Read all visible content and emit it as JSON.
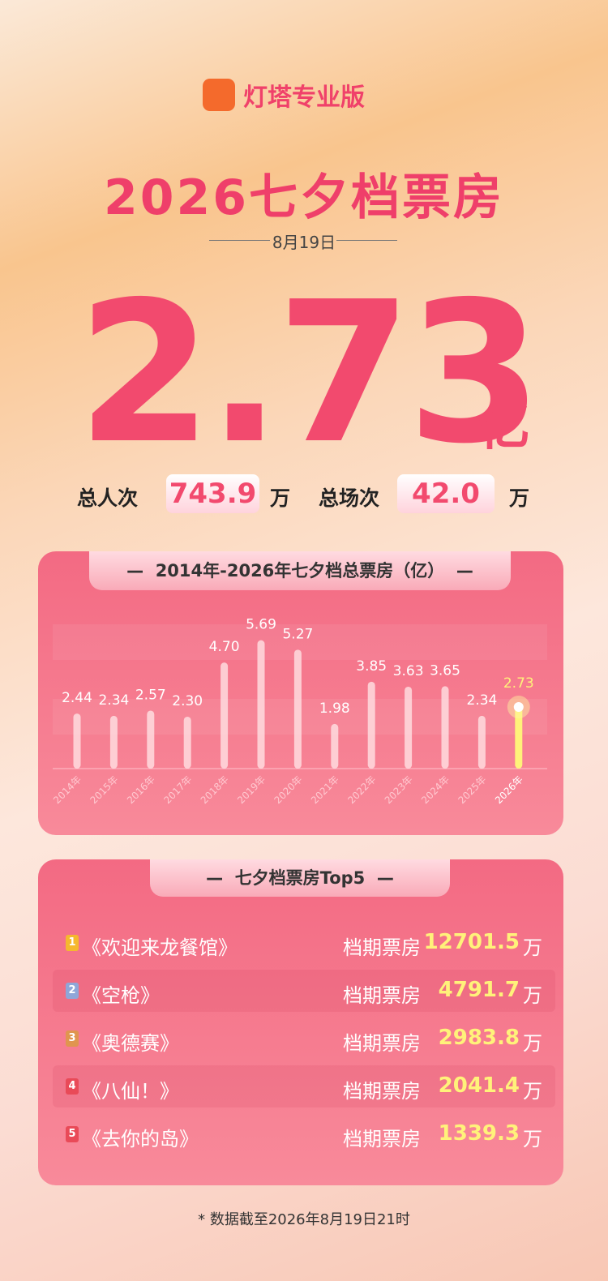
{
  "header": {
    "brand": "灯塔专业版",
    "title": "2026七夕档票房",
    "date": "8月19日"
  },
  "total": {
    "value": "2.73",
    "unit": "亿"
  },
  "stats": [
    {
      "label": "总人次",
      "value": "743.9",
      "unit": "万"
    },
    {
      "label": "总场次",
      "value": "42.0",
      "unit": "万"
    }
  ],
  "chart_data": {
    "type": "bar",
    "title": "2014年-2026年七夕档总票房（亿）",
    "categories": [
      "2014年",
      "2015年",
      "2016年",
      "2017年",
      "2018年",
      "2019年",
      "2020年",
      "2021年",
      "2022年",
      "2023年",
      "2024年",
      "2025年",
      "2026年"
    ],
    "values": [
      2.44,
      2.34,
      2.57,
      2.3,
      4.7,
      5.69,
      5.27,
      1.98,
      3.85,
      3.63,
      3.65,
      2.34,
      2.73
    ],
    "value_labels": [
      "2.44",
      "2.34",
      "2.57",
      "2.30",
      "4.70",
      "5.69",
      "5.27",
      "1.98",
      "3.85",
      "3.63",
      "3.65",
      "2.34",
      "2.73"
    ],
    "color": "#ffe1e4",
    "highlight_color": "#fff27a",
    "ylim": [
      0,
      6
    ]
  },
  "top5": {
    "title": "七夕档票房Top5",
    "rows": [
      {
        "rank": "1",
        "name": "《欢迎来龙餐馆》",
        "label": "档期票房",
        "value": "12701.5",
        "unit": "万"
      },
      {
        "rank": "2",
        "name": "《空枪》",
        "label": "档期票房",
        "value": "4791.7",
        "unit": "万"
      },
      {
        "rank": "3",
        "name": "《奥德赛》",
        "label": "档期票房",
        "value": "2983.8",
        "unit": "万"
      },
      {
        "rank": "4",
        "name": "《八仙！》",
        "label": "档期票房",
        "value": "2041.4",
        "unit": "万"
      },
      {
        "rank": "5",
        "name": "《去你的岛》",
        "label": "档期票房",
        "value": "1339.3",
        "unit": "万"
      }
    ]
  },
  "footnote": "* 数据截至2026年8月19日21时"
}
